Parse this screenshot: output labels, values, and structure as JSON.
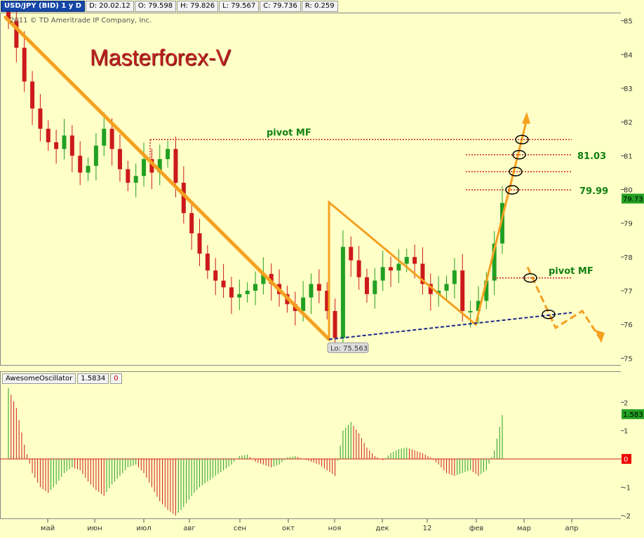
{
  "header": {
    "symbol": "USD/JPY (BID) 1 y D",
    "date": "D: 20.02.12",
    "open": "O: 79.598",
    "high": "H: 79.826",
    "low": "L: 79.567",
    "close": "C: 79.736",
    "range": "R: 0.259",
    "copyright": "2011 © TD Ameritrade IP Company, Inc."
  },
  "watermark": "Masterforex-V",
  "oscillator": {
    "name": "AwesomeOscillator",
    "value": "1.5834",
    "zero": "0",
    "last_label": "1.583"
  },
  "colors": {
    "background": "#ffffc8",
    "up": "#22a022",
    "down": "#cc1a1a",
    "trend": "#f5a020",
    "pivot": "#d02020",
    "support": "#1a2a8a",
    "label": "#108010"
  },
  "chart_data": [
    {
      "type": "candlestick",
      "x_ticks": [
        "май",
        "июн",
        "июл",
        "авг",
        "сен",
        "окт",
        "ноя",
        "дек",
        "12",
        "фев",
        "мар",
        "апр"
      ],
      "y_ticks": [
        75,
        76,
        77,
        78,
        79,
        80,
        81,
        82,
        83,
        84,
        85
      ],
      "ylim": [
        74.8,
        85.2
      ],
      "last_price_label": "79.73",
      "low_label": "Lo: 75.563",
      "series": [
        {
          "name": "closes",
          "values": [
            85.0,
            84.2,
            83.2,
            82.4,
            81.8,
            81.4,
            81.2,
            81.6,
            81.0,
            80.5,
            80.7,
            81.3,
            81.8,
            81.2,
            80.6,
            80.2,
            80.4,
            80.9,
            80.5,
            80.9,
            81.2,
            80.2,
            79.3,
            78.7,
            78.1,
            77.6,
            77.3,
            77.1,
            76.8,
            76.9,
            77.0,
            77.2,
            77.5,
            77.2,
            76.9,
            76.6,
            76.4,
            76.8,
            77.2,
            77.0,
            76.4,
            75.6,
            78.3,
            77.9,
            77.4,
            76.9,
            77.3,
            77.7,
            77.6,
            77.8,
            78.0,
            77.8,
            77.2,
            76.9,
            77.0,
            77.2,
            77.6,
            76.4,
            76.4,
            76.7,
            77.3,
            78.4,
            79.6
          ]
        }
      ],
      "annotations": [
        {
          "text": "pivot MF",
          "price": 81.48
        },
        {
          "text": "81.03",
          "price": 81.03
        },
        {
          "text": "79.99",
          "price": 79.99
        },
        {
          "text": "pivot MF",
          "price": 77.38
        }
      ],
      "levels": [
        81.48,
        81.03,
        80.53,
        79.99,
        77.38
      ]
    },
    {
      "type": "bar",
      "name": "AwesomeOscillator",
      "y_ticks": [
        -2,
        -1,
        0,
        1,
        2
      ],
      "ylim": [
        -2.1,
        2.6
      ],
      "values": [
        2.5,
        1.8,
        0.5,
        -0.5,
        -1.0,
        -1.2,
        -0.9,
        -0.5,
        -0.3,
        -0.4,
        -0.8,
        -1.1,
        -1.3,
        -0.9,
        -0.6,
        -0.3,
        -0.2,
        -0.5,
        -1.0,
        -1.5,
        -1.8,
        -2.0,
        -1.7,
        -1.3,
        -1.0,
        -0.8,
        -0.6,
        -0.4,
        -0.2,
        0.1,
        0.15,
        -0.1,
        -0.2,
        -0.3,
        -0.2,
        0.05,
        0.1,
        0.0,
        -0.1,
        -0.2,
        -0.4,
        -0.6,
        1.0,
        1.3,
        0.9,
        0.4,
        0.1,
        -0.05,
        0.2,
        0.35,
        0.4,
        0.3,
        0.2,
        0.05,
        -0.2,
        -0.5,
        -0.6,
        -0.5,
        -0.4,
        -0.6,
        -0.4,
        0.3,
        1.55
      ]
    }
  ]
}
